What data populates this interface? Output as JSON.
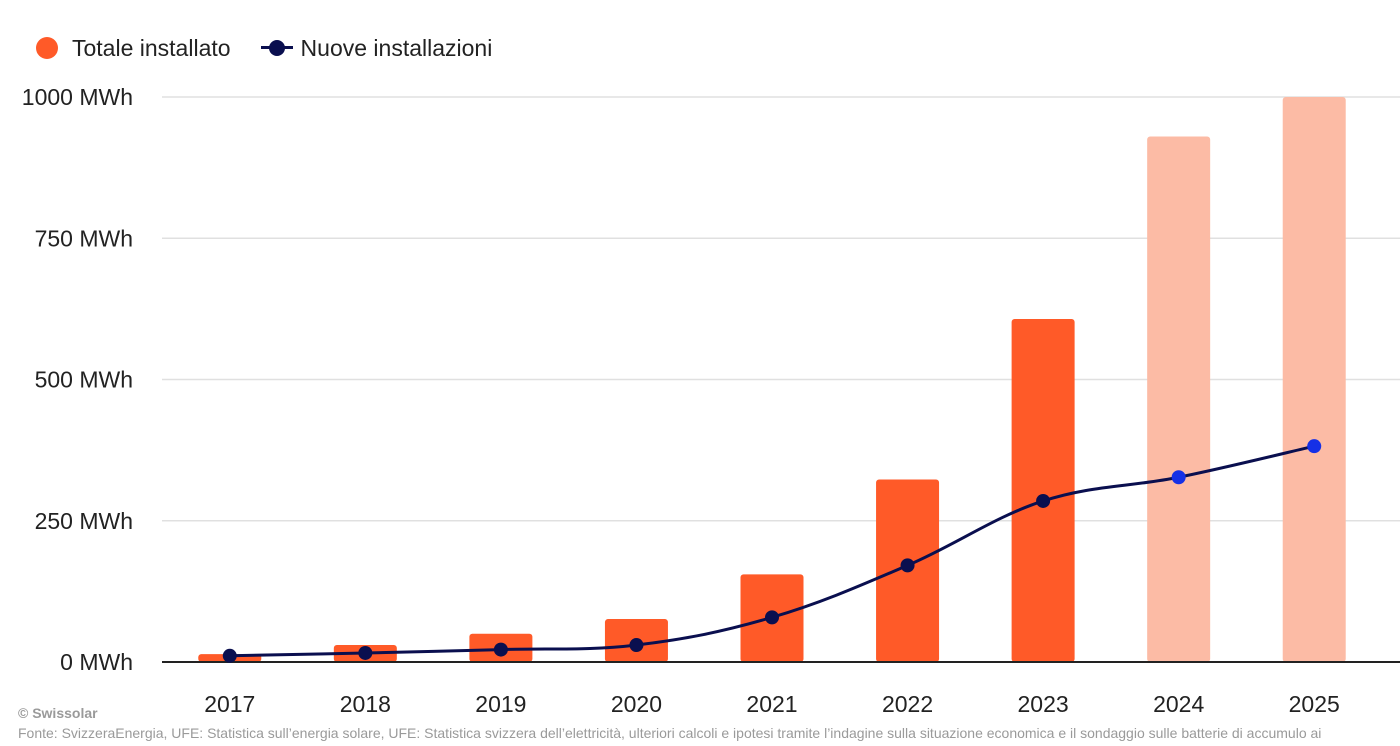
{
  "legend": {
    "total_label": "Totale installato",
    "new_label": "Nuove installazioni"
  },
  "footer": {
    "credit": "© Swissolar",
    "source": "Fonte: SvizzeraEnergia, UFE: Statistica sull’energia solare, UFE: Statistica svizzera dell’elettricità, ulteriori calcoli e ipotesi tramite l’indagine sulla situazione economica e il sondaggio sulle batterie di accumulo ai"
  },
  "colors": {
    "bar_actual": "#ff5a28",
    "bar_forecast": "#fcbba5",
    "line": "#0a0f4f",
    "line_forecast_point": "#1530e6",
    "grid": "#e0e0e0",
    "axis": "#222222",
    "text": "#222222"
  },
  "chart_data": {
    "type": "bar",
    "categories": [
      "2017",
      "2018",
      "2019",
      "2020",
      "2021",
      "2022",
      "2023",
      "2024",
      "2025"
    ],
    "series": [
      {
        "name": "Totale installato",
        "type": "bar",
        "values": [
          14,
          30,
          50,
          76,
          155,
          323,
          607,
          930,
          1000
        ],
        "forecast_from_index": 7
      },
      {
        "name": "Nuove installazioni",
        "type": "line",
        "values": [
          11,
          16,
          22,
          30,
          79,
          171,
          285,
          327,
          382
        ],
        "forecast_from_index": 7
      }
    ],
    "ylim": [
      0,
      1000
    ],
    "yticks": [
      0,
      250,
      500,
      750,
      1000
    ],
    "ytick_labels": [
      "0 MWh",
      "250 MWh",
      "500 MWh",
      "750 MWh",
      "1000 MWh"
    ],
    "grid": true,
    "legend": "top-left"
  }
}
